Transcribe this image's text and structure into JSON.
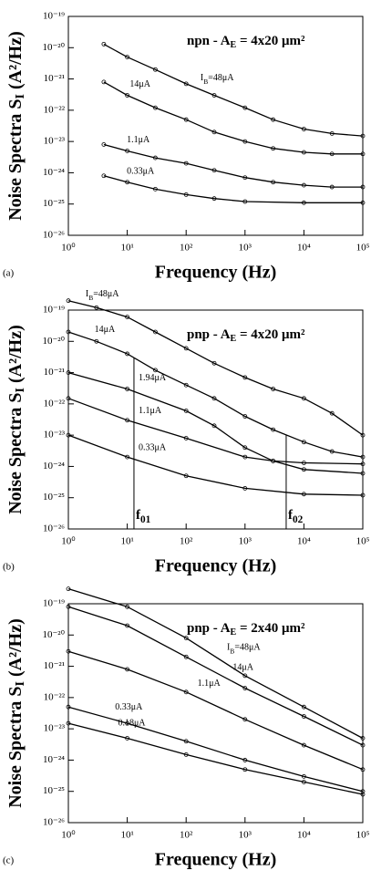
{
  "chart_data": [
    {
      "type": "line",
      "panel": "(a)",
      "annotation": [
        "npn - A",
        "E",
        " = 4x20 μm²"
      ],
      "ylabel": [
        "Noise Spectra S",
        "I",
        " (A²/Hz)"
      ],
      "xlabel": "Frequency  (Hz)",
      "xscale": "log",
      "yscale": "log",
      "color": "#000000",
      "xlim": [
        1,
        100000
      ],
      "ylim": [
        1e-26,
        1e-19
      ],
      "xticks": [
        {
          "value": 1,
          "label": "10⁰"
        },
        {
          "value": 10,
          "label": "10¹"
        },
        {
          "value": 100,
          "label": "10²"
        },
        {
          "value": 1000,
          "label": "10³"
        },
        {
          "value": 10000,
          "label": "10⁴"
        },
        {
          "value": 100000,
          "label": "10⁵"
        }
      ],
      "yticks": [
        {
          "value": 1e-26,
          "label": "10⁻²⁶"
        },
        {
          "value": 1e-25,
          "label": "10⁻²⁵"
        },
        {
          "value": 1e-24,
          "label": "10⁻²⁴"
        },
        {
          "value": 1e-23,
          "label": "10⁻²³"
        },
        {
          "value": 1e-22,
          "label": "10⁻²²"
        },
        {
          "value": 1e-21,
          "label": "10⁻²¹"
        },
        {
          "value": 1e-20,
          "label": "10⁻²⁰"
        },
        {
          "value": 1e-19,
          "label": "10⁻¹⁹"
        }
      ],
      "series": [
        {
          "name": "IB=48μA",
          "x": [
            4,
            10,
            30,
            100,
            300,
            1000,
            3000,
            10000,
            30000,
            100000
          ],
          "values": [
            1.3e-20,
            5e-21,
            2e-21,
            7e-22,
            3e-22,
            1.2e-22,
            5e-23,
            2.5e-23,
            1.8e-23,
            1.5e-23
          ]
        },
        {
          "name": "14μA",
          "x": [
            4,
            10,
            30,
            100,
            300,
            1000,
            3000,
            10000,
            30000,
            100000
          ],
          "values": [
            8e-22,
            3e-22,
            1.2e-22,
            5e-23,
            2e-23,
            1e-23,
            6e-24,
            4.5e-24,
            4e-24,
            4e-24
          ]
        },
        {
          "name": "1.1μA",
          "x": [
            4,
            10,
            30,
            100,
            300,
            1000,
            3000,
            10000,
            30000,
            100000
          ],
          "values": [
            8e-24,
            5e-24,
            3e-24,
            2e-24,
            1.2e-24,
            7e-25,
            5e-25,
            4e-25,
            3.5e-25,
            3.5e-25
          ]
        },
        {
          "name": "0.33μA",
          "x": [
            4,
            10,
            30,
            100,
            300,
            1000,
            10000,
            100000
          ],
          "values": [
            8e-25,
            5e-25,
            3e-25,
            2e-25,
            1.5e-25,
            1.2e-25,
            1.1e-25,
            1.1e-25
          ]
        }
      ]
    },
    {
      "type": "line",
      "panel": "(b)",
      "annotation": [
        "pnp - A",
        "E",
        " = 4x20 μm²"
      ],
      "ylabel": [
        "Noise Spectra S",
        "I",
        " (A²/Hz)"
      ],
      "xlabel": "Frequency  (Hz)",
      "xscale": "log",
      "yscale": "log",
      "color": "#000000",
      "xlim": [
        1,
        100000
      ],
      "ylim": [
        1e-26,
        1e-19
      ],
      "xticks": [
        {
          "value": 1,
          "label": "10⁰"
        },
        {
          "value": 10,
          "label": "10¹"
        },
        {
          "value": 100,
          "label": "10²"
        },
        {
          "value": 1000,
          "label": "10³"
        },
        {
          "value": 10000,
          "label": "10⁴"
        },
        {
          "value": 100000,
          "label": "10⁵"
        }
      ],
      "yticks": [
        {
          "value": 1e-26,
          "label": "10⁻²⁶"
        },
        {
          "value": 1e-25,
          "label": "10⁻²⁵"
        },
        {
          "value": 1e-24,
          "label": "10⁻²⁴"
        },
        {
          "value": 1e-23,
          "label": "10⁻²³"
        },
        {
          "value": 1e-22,
          "label": "10⁻²²"
        },
        {
          "value": 1e-21,
          "label": "10⁻²¹"
        },
        {
          "value": 1e-20,
          "label": "10⁻²⁰"
        },
        {
          "value": 1e-19,
          "label": "10⁻¹⁹"
        }
      ],
      "series": [
        {
          "name": "IB=48μA",
          "x": [
            1,
            3,
            10,
            30,
            100,
            300,
            1000,
            3000,
            10000,
            30000,
            100000
          ],
          "values": [
            2e-19,
            1.2e-19,
            6e-20,
            2e-20,
            6e-21,
            2e-21,
            7e-22,
            3e-22,
            1.5e-22,
            5e-23,
            1e-23
          ]
        },
        {
          "name": "14μA",
          "x": [
            1,
            3,
            10,
            30,
            100,
            300,
            1000,
            3000,
            10000,
            30000,
            100000
          ],
          "values": [
            2e-20,
            1e-20,
            4e-21,
            1.2e-21,
            4e-22,
            1.5e-22,
            4e-23,
            1.5e-23,
            6e-24,
            3e-24,
            2e-24
          ]
        },
        {
          "name": "1.94μA",
          "x": [
            1,
            10,
            100,
            300,
            1000,
            3000,
            10000,
            100000
          ],
          "values": [
            1e-21,
            3e-22,
            6e-23,
            2e-23,
            4e-24,
            1.5e-24,
            8e-25,
            6e-25
          ]
        },
        {
          "name": "1.1μA",
          "x": [
            1,
            10,
            100,
            1000,
            3000,
            10000,
            100000
          ],
          "values": [
            1.5e-22,
            3e-23,
            8e-24,
            2e-24,
            1.5e-24,
            1.3e-24,
            1.2e-24
          ]
        },
        {
          "name": "0.33μA",
          "x": [
            1,
            10,
            100,
            1000,
            10000,
            100000
          ],
          "values": [
            1e-23,
            2e-24,
            5e-25,
            2e-25,
            1.3e-25,
            1.2e-25
          ]
        }
      ],
      "markers": [
        {
          "x": 13,
          "label": "f01"
        },
        {
          "x": 5000,
          "label": "f02"
        }
      ]
    },
    {
      "type": "line",
      "panel": "(c)",
      "annotation": [
        "pnp - A",
        "E",
        " = 2x40 μm²"
      ],
      "ylabel": [
        "Noise Spectra S",
        "I",
        " (A²/Hz)"
      ],
      "xlabel": "Frequency  (Hz)",
      "xscale": "log",
      "yscale": "log",
      "color": "#000000",
      "xlim": [
        1,
        100000
      ],
      "ylim": [
        1e-26,
        1e-19
      ],
      "xticks": [
        {
          "value": 1,
          "label": "10⁰"
        },
        {
          "value": 10,
          "label": "10¹"
        },
        {
          "value": 100,
          "label": "10²"
        },
        {
          "value": 1000,
          "label": "10³"
        },
        {
          "value": 10000,
          "label": "10⁴"
        },
        {
          "value": 100000,
          "label": "10⁵"
        }
      ],
      "yticks": [
        {
          "value": 1e-26,
          "label": "10⁻²⁶"
        },
        {
          "value": 1e-25,
          "label": "10⁻²⁵"
        },
        {
          "value": 1e-24,
          "label": "10⁻²⁴"
        },
        {
          "value": 1e-23,
          "label": "10⁻²³"
        },
        {
          "value": 1e-22,
          "label": "10⁻²²"
        },
        {
          "value": 1e-21,
          "label": "10⁻²¹"
        },
        {
          "value": 1e-20,
          "label": "10⁻²⁰"
        },
        {
          "value": 1e-19,
          "label": "10⁻¹⁹"
        }
      ],
      "series": [
        {
          "name": "IB=48μA",
          "x": [
            1,
            10,
            100,
            1000,
            10000,
            100000
          ],
          "values": [
            3e-19,
            8e-20,
            8e-21,
            5e-22,
            5e-23,
            5e-24
          ]
        },
        {
          "name": "14μA",
          "x": [
            1,
            10,
            100,
            1000,
            10000,
            100000
          ],
          "values": [
            8e-20,
            2e-20,
            2e-21,
            2e-22,
            2.5e-23,
            3e-24
          ]
        },
        {
          "name": "1.1μA",
          "x": [
            1,
            10,
            100,
            1000,
            10000,
            100000
          ],
          "values": [
            3e-21,
            8e-22,
            1.5e-22,
            2e-23,
            3e-24,
            5e-25
          ]
        },
        {
          "name": "0.33μA",
          "x": [
            1,
            10,
            100,
            1000,
            10000,
            100000
          ],
          "values": [
            5e-23,
            1.5e-23,
            4e-24,
            1e-24,
            3e-25,
            1e-25
          ]
        },
        {
          "name": "0.18μA",
          "x": [
            1,
            10,
            100,
            1000,
            10000,
            100000
          ],
          "values": [
            1.5e-23,
            5e-24,
            1.5e-24,
            5e-25,
            2e-25,
            8e-26
          ]
        }
      ]
    }
  ]
}
